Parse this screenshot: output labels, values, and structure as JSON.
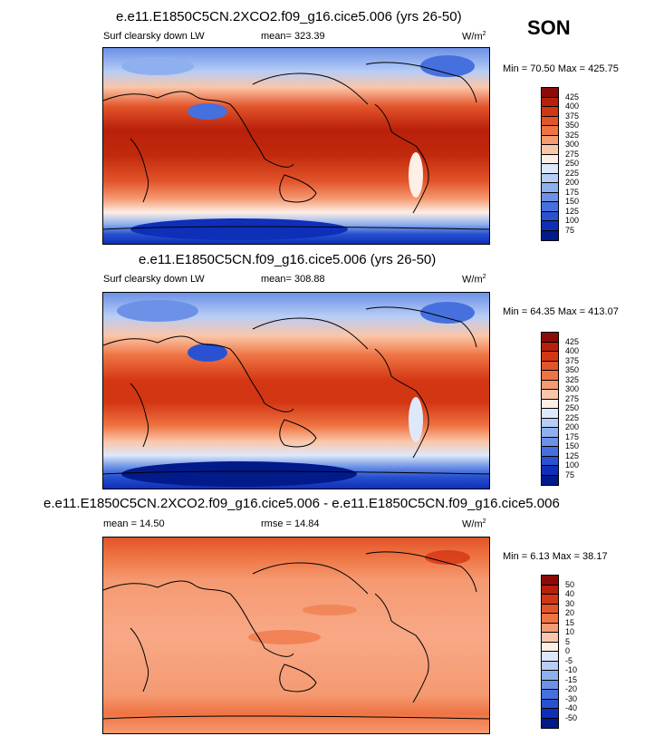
{
  "season": "SON",
  "panels": [
    {
      "title": "e.e11.E1850C5CN.2XCO2.f09_g16.cice5.006 (yrs 26-50)",
      "variable": "Surf clearsky down LW",
      "stat": "mean= 323.39",
      "units": "W/m",
      "units_sup": "2",
      "minmax": "Min = 70.50 Max = 425.75",
      "colorbar_labels": [
        "425",
        "400",
        "375",
        "350",
        "325",
        "300",
        "275",
        "250",
        "225",
        "200",
        "175",
        "150",
        "125",
        "100",
        "75"
      ],
      "colorbar_colors": [
        "#8a0b07",
        "#b8200a",
        "#d33613",
        "#e2542a",
        "#ef7443",
        "#f59a72",
        "#fbc6a8",
        "#fdeee6",
        "#dde9fa",
        "#b7cdf6",
        "#8fb0ee",
        "#6c91e6",
        "#4670de",
        "#2852d1",
        "#0e2fb8",
        "#021a8a"
      ]
    },
    {
      "title": "e.e11.E1850C5CN.f09_g16.cice5.006 (yrs 26-50)",
      "variable": "Surf clearsky down LW",
      "stat": "mean= 308.88",
      "units": "W/m",
      "units_sup": "2",
      "minmax": "Min = 64.35 Max = 413.07",
      "colorbar_labels": [
        "425",
        "400",
        "375",
        "350",
        "325",
        "300",
        "275",
        "250",
        "225",
        "200",
        "175",
        "150",
        "125",
        "100",
        "75"
      ],
      "colorbar_colors": [
        "#8a0b07",
        "#b8200a",
        "#d33613",
        "#e2542a",
        "#ef7443",
        "#f59a72",
        "#fbc6a8",
        "#fdeee6",
        "#dde9fa",
        "#b7cdf6",
        "#8fb0ee",
        "#6c91e6",
        "#4670de",
        "#2852d1",
        "#0e2fb8",
        "#021a8a"
      ]
    },
    {
      "title": "e.e11.E1850C5CN.2XCO2.f09_g16.cice5.006 - e.e11.E1850C5CN.f09_g16.cice5.006",
      "variable": "mean =  14.50",
      "stat": "rmse =  14.84",
      "units": "W/m",
      "units_sup": "2",
      "minmax": "Min =  6.13 Max = 38.17",
      "colorbar_labels": [
        "50",
        "40",
        "30",
        "20",
        "15",
        "10",
        "5",
        "0",
        "-5",
        "-10",
        "-15",
        "-20",
        "-30",
        "-40",
        "-50"
      ],
      "colorbar_colors": [
        "#8a0b07",
        "#b8200a",
        "#d33613",
        "#e2542a",
        "#ef7443",
        "#f59a72",
        "#fbc6a8",
        "#fdeee6",
        "#dde9fa",
        "#b7cdf6",
        "#8fb0ee",
        "#6c91e6",
        "#4670de",
        "#2852d1",
        "#0e2fb8",
        "#021a8a"
      ]
    }
  ]
}
